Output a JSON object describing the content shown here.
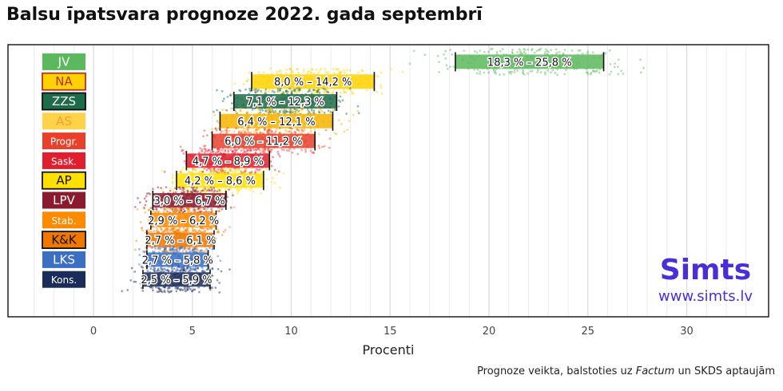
{
  "title": "Balsu īpatsvara prognoze 2022. gada septembrī",
  "caption": {
    "before": "Prognoze veikta, balstoties uz ",
    "italic": "Factum",
    "after": " un SKDS aptaujām"
  },
  "brand": {
    "name": "Simts",
    "url": "www.simts.lv",
    "color": "#4b2fd6"
  },
  "chart_data": {
    "type": "scatter",
    "title": "Balsu īpatsvara prognoze 2022. gada septembrī",
    "xlabel": "Procenti",
    "ylabel": "",
    "xlim": [
      -3.5,
      33
    ],
    "xticks": [
      0,
      5,
      10,
      15,
      20,
      25,
      30
    ],
    "grid": true,
    "legend": "none",
    "series": [
      {
        "name": "JV",
        "color": "#5cb85c",
        "low": 18.3,
        "high": 25.8,
        "label": "18,3 % – 25,8 %",
        "spread": [
          16,
          30
        ]
      },
      {
        "name": "NA",
        "color": "#ffd200",
        "border": "#b03030",
        "textColor": "#b03030",
        "low": 8.0,
        "high": 14.2,
        "label": "8,0 % – 14,2 %",
        "spread": [
          6.5,
          16.5
        ]
      },
      {
        "name": "ZZS",
        "color": "#1d6b48",
        "border": "#111111",
        "low": 7.1,
        "high": 12.3,
        "label": "7,1 % – 12,3 %",
        "spread": [
          4.5,
          15
        ]
      },
      {
        "name": "AS",
        "color": "#f5b400",
        "textColor": "#f0a030",
        "boxColor": "#ffd24a",
        "low": 6.4,
        "high": 12.1,
        "label": "6,4 % – 12,1 %",
        "spread": [
          4.5,
          14.5
        ]
      },
      {
        "name": "Progr.",
        "color": "#e8402a",
        "low": 6.0,
        "high": 11.2,
        "label": "6,0 % – 11,2 %",
        "spread": [
          3.5,
          13
        ]
      },
      {
        "name": "Sask.",
        "color": "#e01e2e",
        "low": 4.7,
        "high": 8.9,
        "label": "4,7 % – 8,9 %",
        "spread": [
          2.5,
          11.5
        ]
      },
      {
        "name": "AP",
        "color": "#ffe000",
        "border": "#111111",
        "textColor": "#111111",
        "low": 4.2,
        "high": 8.6,
        "label": "4,2 % – 8,6 %",
        "spread": [
          3,
          11.5
        ]
      },
      {
        "name": "LPV",
        "color": "#8b1a2e",
        "low": 3.0,
        "high": 6.7,
        "label": "3,0 % – 6,7 %",
        "spread": [
          1.0,
          9
        ]
      },
      {
        "name": "Stab.",
        "color": "#ff8a00",
        "low": 2.9,
        "high": 6.2,
        "label": "2,9 % – 6,2 %",
        "spread": [
          1.0,
          9
        ]
      },
      {
        "name": "K&K",
        "color": "#f07800",
        "border": "#111111",
        "textColor": "#111111",
        "low": 2.7,
        "high": 6.1,
        "label": "2,7 % – 6,1 %",
        "spread": [
          1.0,
          8.5
        ]
      },
      {
        "name": "LKS",
        "color": "#3a6fc4",
        "low": 2.7,
        "high": 5.8,
        "label": "2,7 % – 5,8 %",
        "spread": [
          1.0,
          8.5
        ]
      },
      {
        "name": "Kons.",
        "color": "#1a2d5a",
        "low": 2.5,
        "high": 5.9,
        "label": "2,5 % – 5,9 %",
        "spread": [
          1.0,
          8.5
        ]
      }
    ]
  }
}
